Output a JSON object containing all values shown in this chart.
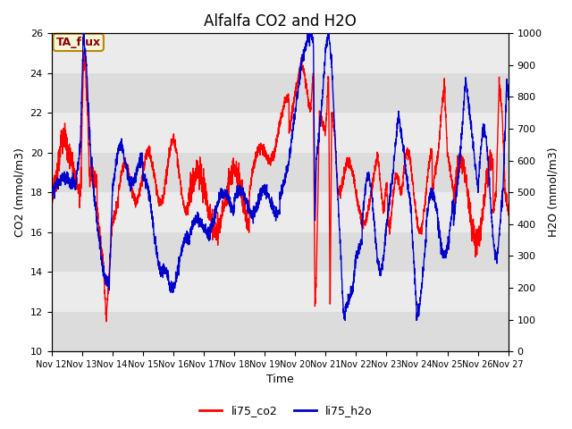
{
  "title": "Alfalfa CO2 and H2O",
  "xlabel": "Time",
  "ylabel_left": "CO2 (mmol/m3)",
  "ylabel_right": "H2O (mmol/m3)",
  "legend_label1": "li75_co2",
  "legend_label2": "li75_h2o",
  "annotation": "TA_flux",
  "color_co2": "#FF0000",
  "color_h2o": "#0000CD",
  "ylim_left": [
    10,
    26
  ],
  "ylim_right": [
    0,
    1000
  ],
  "yticks_left": [
    10,
    12,
    14,
    16,
    18,
    20,
    22,
    24,
    26
  ],
  "yticks_right": [
    0,
    100,
    200,
    300,
    400,
    500,
    600,
    700,
    800,
    900,
    1000
  ],
  "bg_color": "#FFFFFF",
  "plot_bg_color": "#FFFFFF",
  "band_color_dark": "#DCDCDC",
  "band_color_light": "#EBEBEB",
  "annotation_bg": "#F5F5DC",
  "annotation_border": "#B8860B",
  "x_tick_labels": [
    "Nov 12",
    "Nov 13",
    "Nov 14",
    "Nov 15",
    "Nov 16",
    "Nov 17",
    "Nov 18",
    "Nov 19",
    "Nov 20",
    "Nov 21",
    "Nov 22",
    "Nov 23",
    "Nov 24",
    "Nov 25",
    "Nov 26",
    "Nov 27"
  ],
  "title_fontsize": 12,
  "axis_label_fontsize": 9,
  "tick_fontsize": 8,
  "legend_fontsize": 9,
  "annotation_fontsize": 9,
  "line_width": 1.0
}
